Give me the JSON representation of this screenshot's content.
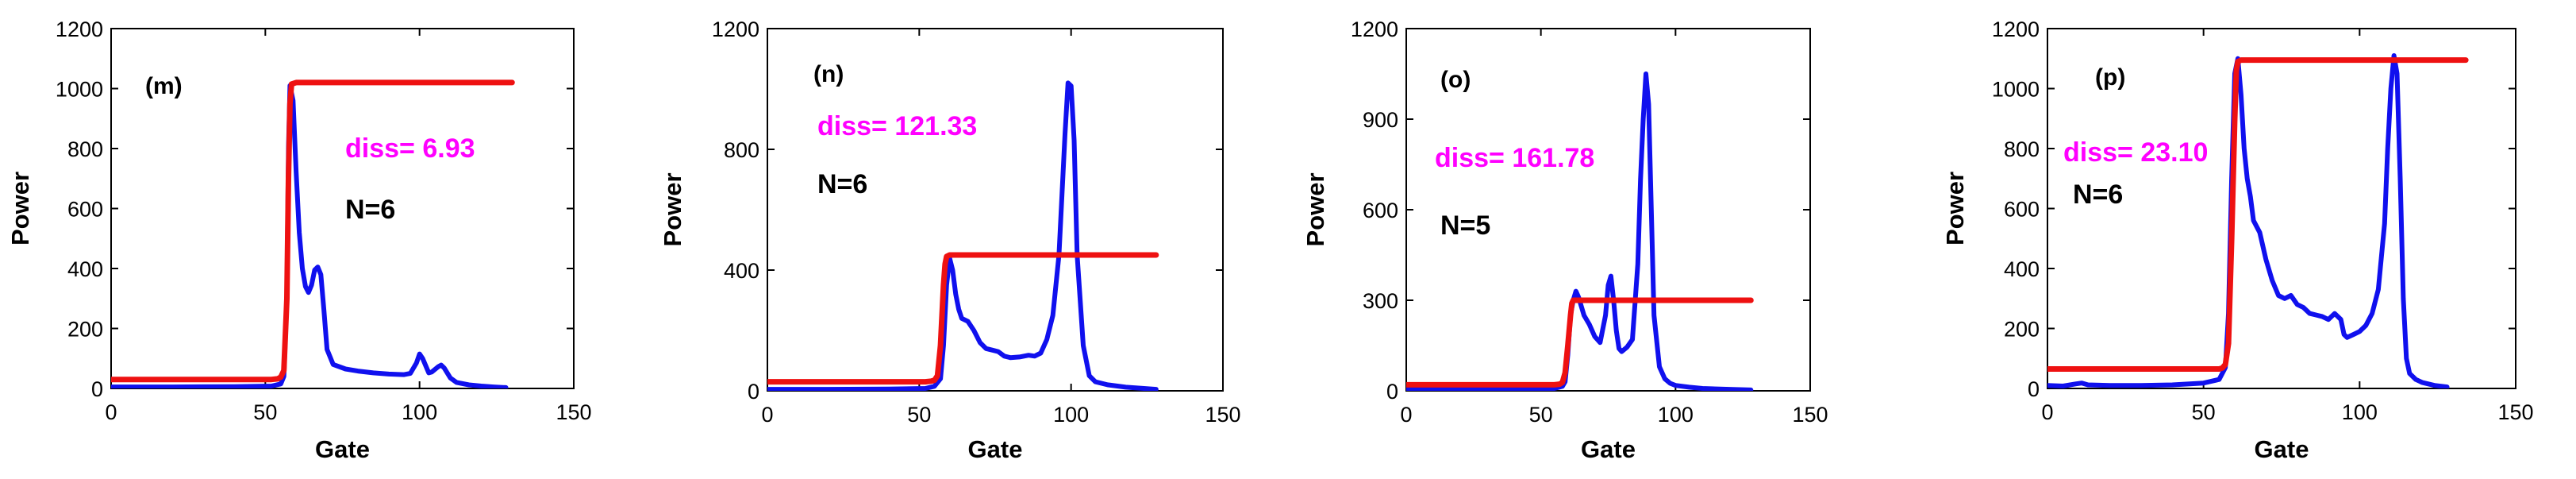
{
  "colors": {
    "signal": "#1010ee",
    "fit": "#ee1111",
    "diss": "#ff00ff",
    "axis": "#000000"
  },
  "chart_data": [
    {
      "type": "line",
      "panel": "(m)",
      "xlabel": "Gate",
      "ylabel": "Power",
      "xlim": [
        0,
        150
      ],
      "ylim": [
        0,
        1200
      ],
      "xticks": [
        0,
        50,
        100,
        150
      ],
      "yticks": [
        0,
        200,
        400,
        600,
        800,
        1000,
        1200
      ],
      "diss": "diss= 6.93",
      "n": "N=6",
      "series": [
        {
          "name": "signal",
          "x": [
            0,
            20,
            40,
            52,
            55,
            56,
            57,
            57.5,
            58,
            59,
            60,
            61,
            62,
            63,
            64,
            65,
            66,
            67,
            68,
            69,
            70,
            72,
            76,
            80,
            85,
            90,
            95,
            97,
            99,
            100,
            101,
            103,
            104,
            106,
            107,
            108,
            110,
            112,
            116,
            120,
            124,
            128
          ],
          "y": [
            5,
            5,
            6,
            8,
            15,
            40,
            300,
            800,
            1010,
            960,
            720,
            520,
            400,
            340,
            320,
            345,
            395,
            405,
            380,
            260,
            130,
            80,
            65,
            58,
            52,
            48,
            46,
            50,
            85,
            115,
            100,
            52,
            55,
            72,
            78,
            68,
            35,
            20,
            12,
            8,
            5,
            3
          ]
        },
        {
          "name": "fit",
          "x": [
            0,
            52,
            54,
            55,
            56,
            57,
            57.5,
            58,
            58.5,
            60,
            130
          ],
          "y": [
            30,
            30,
            32,
            38,
            60,
            300,
            700,
            950,
            1015,
            1020,
            1020
          ]
        }
      ]
    },
    {
      "type": "line",
      "panel": "(n)",
      "xlabel": "Gate",
      "ylabel": "Power",
      "xlim": [
        0,
        150
      ],
      "ylim": [
        0,
        1200
      ],
      "xticks": [
        0,
        50,
        100,
        150
      ],
      "yticks": [
        0,
        400,
        800,
        1200
      ],
      "diss": "diss= 121.33",
      "n": "N=6",
      "series": [
        {
          "name": "signal",
          "x": [
            0,
            20,
            40,
            52,
            55,
            57,
            58,
            59,
            60,
            61,
            62,
            63,
            64,
            66,
            68,
            70,
            72,
            74,
            76,
            78,
            80,
            83,
            86,
            88,
            90,
            92,
            94,
            96,
            97,
            98,
            99,
            100,
            101,
            102,
            104,
            106,
            108,
            112,
            118,
            124,
            128
          ],
          "y": [
            5,
            5,
            6,
            8,
            15,
            40,
            150,
            350,
            440,
            400,
            320,
            270,
            240,
            230,
            200,
            160,
            140,
            135,
            130,
            115,
            110,
            112,
            118,
            115,
            125,
            170,
            250,
            450,
            650,
            850,
            1020,
            1010,
            830,
            450,
            150,
            50,
            30,
            20,
            12,
            8,
            5
          ]
        },
        {
          "name": "fit",
          "x": [
            0,
            52,
            54,
            55,
            56,
            57,
            58,
            58.5,
            59,
            60,
            128
          ],
          "y": [
            30,
            30,
            32,
            35,
            50,
            150,
            350,
            420,
            445,
            450,
            450
          ]
        }
      ]
    },
    {
      "type": "line",
      "panel": "(o)",
      "xlabel": "Gate",
      "ylabel": "Power",
      "xlim": [
        0,
        150
      ],
      "ylim": [
        0,
        1200
      ],
      "xticks": [
        0,
        50,
        100,
        150
      ],
      "yticks": [
        0,
        300,
        600,
        900,
        1200
      ],
      "diss": "diss= 161.78",
      "n": "N=5",
      "series": [
        {
          "name": "signal",
          "x": [
            0,
            20,
            40,
            55,
            58,
            59,
            60,
            61,
            62,
            63,
            64,
            65,
            66,
            68,
            70,
            72,
            74,
            75,
            76,
            77,
            78,
            79,
            80,
            82,
            84,
            86,
            87,
            88,
            89,
            90,
            91,
            92,
            94,
            96,
            98,
            100,
            105,
            110,
            120,
            128
          ],
          "y": [
            5,
            5,
            6,
            8,
            15,
            30,
            120,
            250,
            300,
            330,
            310,
            280,
            250,
            220,
            180,
            160,
            250,
            350,
            380,
            300,
            200,
            140,
            130,
            145,
            170,
            420,
            700,
            900,
            1050,
            950,
            600,
            250,
            80,
            40,
            25,
            18,
            12,
            8,
            5,
            3
          ]
        },
        {
          "name": "fit",
          "x": [
            0,
            55,
            57,
            58,
            59,
            60,
            61,
            61.5,
            62,
            128
          ],
          "y": [
            20,
            20,
            22,
            28,
            60,
            150,
            250,
            290,
            300,
            300
          ]
        }
      ]
    },
    {
      "type": "line",
      "panel": "(p)",
      "xlabel": "Gate",
      "ylabel": "Power",
      "xlim": [
        0,
        150
      ],
      "ylim": [
        0,
        1200
      ],
      "xticks": [
        0,
        50,
        100,
        150
      ],
      "yticks": [
        0,
        200,
        400,
        600,
        800,
        1000,
        1200
      ],
      "diss": "diss= 23.10",
      "n": "N=6",
      "series": [
        {
          "name": "signal",
          "x": [
            0,
            5,
            9,
            11,
            13,
            20,
            30,
            40,
            50,
            55,
            57,
            58,
            59,
            60,
            61,
            62,
            63,
            64,
            65,
            66,
            68,
            70,
            72,
            74,
            76,
            78,
            80,
            82,
            84,
            86,
            88,
            90,
            92,
            94,
            95,
            96,
            98,
            100,
            102,
            104,
            106,
            108,
            109,
            110,
            111,
            112,
            113,
            114,
            115,
            116,
            118,
            120,
            124,
            128
          ],
          "y": [
            10,
            8,
            15,
            18,
            12,
            10,
            10,
            12,
            18,
            30,
            70,
            250,
            700,
            1050,
            1100,
            980,
            800,
            700,
            640,
            560,
            520,
            430,
            360,
            310,
            300,
            310,
            280,
            270,
            250,
            245,
            240,
            230,
            250,
            230,
            180,
            170,
            180,
            190,
            210,
            250,
            330,
            550,
            800,
            1000,
            1110,
            1050,
            700,
            300,
            100,
            50,
            30,
            20,
            10,
            5
          ]
        },
        {
          "name": "fit",
          "x": [
            0,
            55,
            56,
            57,
            58,
            59,
            60,
            60.5,
            61,
            62,
            134
          ],
          "y": [
            65,
            65,
            68,
            80,
            150,
            500,
            900,
            1060,
            1090,
            1095,
            1095
          ]
        }
      ]
    }
  ]
}
